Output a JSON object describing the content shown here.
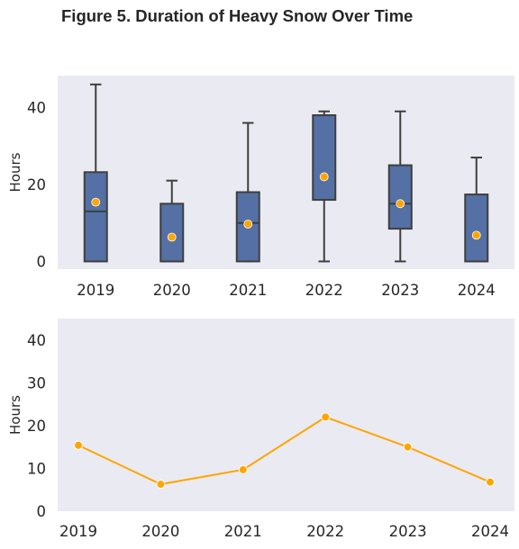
{
  "title": "Figure 5. Duration of Heavy Snow Over Time",
  "colors": {
    "background": "#eaeaf2",
    "box_fill": "#5470a4",
    "box_edge": "#3f3f3f",
    "mean_marker": "#ffa500",
    "line": "#ffa500"
  },
  "chart_data": [
    {
      "type": "box",
      "ylabel": "Hours",
      "categories": [
        "2019",
        "2020",
        "2021",
        "2022",
        "2023",
        "2024"
      ],
      "boxes": [
        {
          "whislo": 0,
          "q1": 0,
          "med": 13,
          "q3": 23.2,
          "whishi": 46,
          "mean": 15.4
        },
        {
          "whislo": 0,
          "q1": 0,
          "med": 0,
          "q3": 15,
          "whishi": 21,
          "mean": 6.3
        },
        {
          "whislo": 0,
          "q1": 0,
          "med": 10,
          "q3": 18,
          "whishi": 36,
          "mean": 9.7
        },
        {
          "whislo": 0,
          "q1": 16,
          "med": 38,
          "q3": 38,
          "whishi": 39,
          "mean": 22
        },
        {
          "whislo": 0,
          "q1": 8.5,
          "med": 15,
          "q3": 25,
          "whishi": 39,
          "mean": 15
        },
        {
          "whislo": 0,
          "q1": 0,
          "med": 0,
          "q3": 17.4,
          "whishi": 27,
          "mean": 6.8
        }
      ],
      "yticks": [
        0,
        20,
        40
      ],
      "ylim": [
        -2,
        48.3
      ],
      "grid": false
    },
    {
      "type": "line",
      "ylabel": "Hours",
      "categories": [
        "2019",
        "2020",
        "2021",
        "2022",
        "2023",
        "2024"
      ],
      "series": [
        {
          "values": [
            15.4,
            6.3,
            9.7,
            22,
            15,
            6.8
          ]
        }
      ],
      "yticks": [
        0,
        10,
        20,
        30,
        40
      ],
      "ylim": [
        0,
        45
      ],
      "grid": false
    }
  ]
}
